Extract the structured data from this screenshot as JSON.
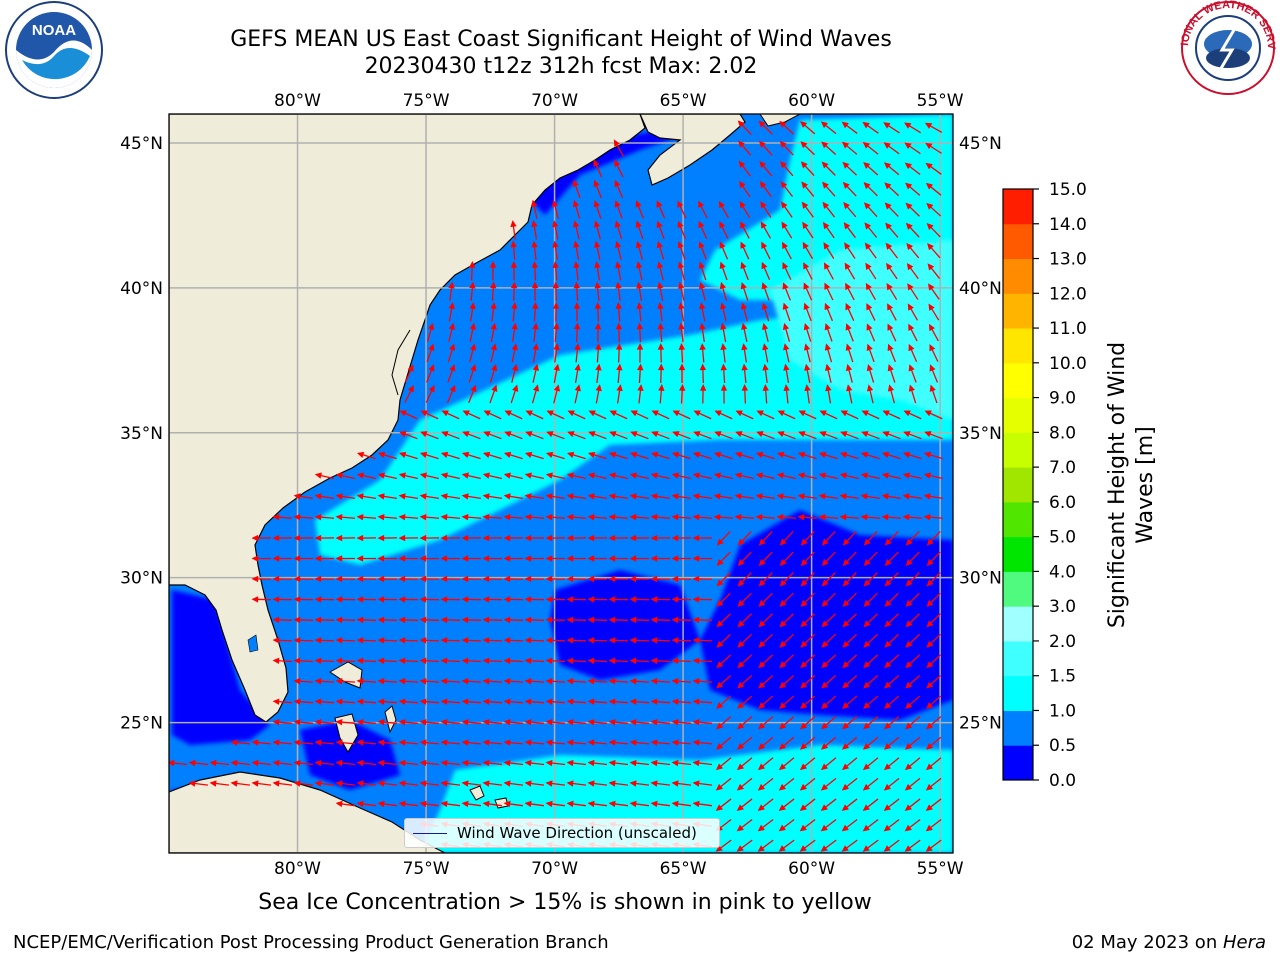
{
  "title": {
    "line1": "GEFS MEAN US East Coast Significant Height of Wind Waves",
    "line2": "20230430 t12z 312h fcst   Max: 2.02"
  },
  "logos": {
    "left": "noaa-logo",
    "right": "national-weather-service-logo",
    "nws_text": "NATIONAL WEATHER SERVICE"
  },
  "map": {
    "lon_range": [
      -85,
      -54.5
    ],
    "lat_range": [
      20.5,
      46
    ],
    "lon_ticks": [
      {
        "value": -80,
        "label": "80°W"
      },
      {
        "value": -75,
        "label": "75°W"
      },
      {
        "value": -70,
        "label": "70°W"
      },
      {
        "value": -65,
        "label": "65°W"
      },
      {
        "value": -60,
        "label": "60°W"
      },
      {
        "value": -55,
        "label": "55°W"
      }
    ],
    "lat_ticks": [
      {
        "value": 45,
        "label": "45°N"
      },
      {
        "value": 40,
        "label": "40°N"
      },
      {
        "value": 35,
        "label": "35°N"
      },
      {
        "value": 30,
        "label": "30°N"
      },
      {
        "value": 25,
        "label": "25°N"
      }
    ],
    "colors": {
      "land": "#efedda",
      "grid": "#b0b0b0",
      "arrow": "#ff0000",
      "coast": "#000000"
    }
  },
  "colorbar": {
    "label_line1": "Significant Height of Wind",
    "label_line2": "Waves [m]",
    "levels": [
      0.0,
      0.5,
      1.0,
      1.5,
      2.0,
      3.0,
      4.0,
      5.0,
      6.0,
      7.0,
      8.0,
      9.0,
      10.0,
      11.0,
      12.0,
      13.0,
      14.0,
      15.0
    ],
    "tick_labels": [
      "0.0",
      "0.5",
      "1.0",
      "1.5",
      "2.0",
      "3.0",
      "4.0",
      "5.0",
      "6.0",
      "7.0",
      "8.0",
      "9.0",
      "10.0",
      "11.0",
      "12.0",
      "13.0",
      "14.0",
      "15.0"
    ],
    "colors": [
      "#0000ff",
      "#0080ff",
      "#00ffff",
      "#40ffff",
      "#a0ffff",
      "#50fa7f",
      "#00e600",
      "#50e600",
      "#a0e600",
      "#c8ff00",
      "#e6ff00",
      "#ffff00",
      "#ffe600",
      "#ffb400",
      "#ff8c00",
      "#ff5a00",
      "#ff1e00"
    ]
  },
  "legend": {
    "label": "Wind Wave Direction (unscaled)"
  },
  "note": "Sea Ice Concentration > 15% is shown in pink to yellow",
  "footer": {
    "left": "NCEP/EMC/Verification Post Processing Product Generation Branch",
    "right_date": "02 May 2023 on ",
    "right_machine": "Hera"
  }
}
